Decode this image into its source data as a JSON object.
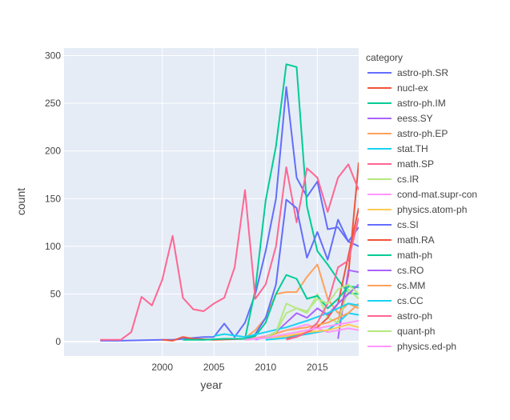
{
  "chart_data": {
    "type": "line",
    "xlabel": "year",
    "ylabel": "count",
    "xlim": [
      1990.5,
      2019
    ],
    "ylim": [
      -15,
      308
    ],
    "x_ticks": [
      2000,
      2005,
      2010,
      2015
    ],
    "y_ticks": [
      0,
      50,
      100,
      150,
      200,
      250,
      300
    ],
    "grid": true,
    "legend_title": "category",
    "legend_position": "right",
    "series": [
      {
        "name": "astro-ph.SR",
        "color": "#636efa",
        "x": [
          1994,
          1995,
          1996,
          2000,
          2001,
          2004,
          2005,
          2006,
          2007,
          2008,
          2009,
          2010,
          2011,
          2012,
          2013,
          2014,
          2015,
          2016,
          2017,
          2018,
          2019
        ],
        "y": [
          1,
          1,
          1,
          2,
          2,
          5,
          5,
          19,
          5,
          20,
          50,
          95,
          150,
          267,
          172,
          152,
          168,
          118,
          120,
          105,
          100
        ]
      },
      {
        "name": "nucl-ex",
        "color": "#EF553B",
        "x": [
          2000,
          2001,
          2002,
          2003,
          2005,
          2008,
          2010,
          2012,
          2014,
          2016,
          2017,
          2018,
          2019
        ],
        "y": [
          2,
          1,
          5,
          3,
          2,
          3,
          4,
          6,
          8,
          12,
          20,
          70,
          188
        ]
      },
      {
        "name": "astro-ph.IM",
        "color": "#00cc96",
        "x": [
          2002,
          2004,
          2006,
          2008,
          2009,
          2010,
          2011,
          2012,
          2013,
          2014,
          2015,
          2016,
          2017,
          2018,
          2019
        ],
        "y": [
          2,
          2,
          3,
          3,
          55,
          148,
          205,
          291,
          288,
          142,
          95,
          81,
          65,
          51,
          50
        ]
      },
      {
        "name": "eess.SY",
        "color": "#ab63fa",
        "x": [
          2017,
          2018,
          2019
        ],
        "y": [
          3,
          75,
          73
        ]
      },
      {
        "name": "astro-ph.EP",
        "color": "#FFA15A",
        "x": [
          2008,
          2009,
          2010,
          2011,
          2012,
          2013,
          2014,
          2015,
          2016,
          2017,
          2018,
          2019
        ],
        "y": [
          4,
          12,
          25,
          50,
          52,
          52,
          68,
          81,
          45,
          30,
          40,
          35
        ]
      },
      {
        "name": "stat.TH",
        "color": "#19d3f3",
        "x": [
          2010,
          2012,
          2014,
          2016,
          2017,
          2018,
          2019
        ],
        "y": [
          2,
          4,
          8,
          12,
          20,
          30,
          28
        ]
      },
      {
        "name": "math.SP",
        "color": "#FF6692",
        "x": [
          1994,
          1995,
          1996,
          1997,
          1998,
          1999,
          2000,
          2001,
          2002,
          2003,
          2004,
          2005,
          2006,
          2007,
          2008,
          2009,
          2010,
          2011,
          2012,
          2013,
          2014,
          2015,
          2016,
          2017,
          2018,
          2019
        ],
        "y": [
          2,
          2,
          2,
          10,
          47,
          38,
          65,
          111,
          46,
          34,
          32,
          40,
          46,
          78,
          159,
          45,
          60,
          100,
          183,
          125,
          182,
          172,
          136,
          172,
          186,
          159
        ]
      },
      {
        "name": "cs.IR",
        "color": "#B6E880",
        "x": [
          2010,
          2011,
          2012,
          2013,
          2014,
          2015,
          2016,
          2017,
          2018,
          2019
        ],
        "y": [
          5,
          10,
          40,
          35,
          30,
          50,
          25,
          20,
          55,
          45
        ]
      },
      {
        "name": "cond-mat.supr-con",
        "color": "#FF97FF",
        "x": [
          2008,
          2010,
          2012,
          2014,
          2016,
          2018,
          2019
        ],
        "y": [
          2,
          6,
          12,
          18,
          10,
          14,
          12
        ]
      },
      {
        "name": "physics.atom-ph",
        "color": "#FECB52",
        "x": [
          2008,
          2010,
          2012,
          2014,
          2016,
          2018,
          2019
        ],
        "y": [
          2,
          4,
          6,
          10,
          12,
          18,
          15
        ]
      },
      {
        "name": "cs.SI",
        "color": "#636efa",
        "x": [
          2008,
          2009,
          2010,
          2011,
          2012,
          2013,
          2014,
          2015,
          2016,
          2017,
          2018,
          2019
        ],
        "y": [
          3,
          8,
          25,
          60,
          149,
          140,
          88,
          115,
          86,
          128,
          105,
          120
        ]
      },
      {
        "name": "math.RA",
        "color": "#EF553B",
        "x": [
          2012,
          2013,
          2014,
          2015,
          2016,
          2017,
          2018,
          2019
        ],
        "y": [
          3,
          5,
          10,
          15,
          25,
          40,
          90,
          140
        ]
      },
      {
        "name": "math-ph",
        "color": "#00cc96",
        "x": [
          2008,
          2009,
          2010,
          2011,
          2012,
          2013,
          2014,
          2015,
          2016,
          2017,
          2018,
          2019
        ],
        "y": [
          3,
          6,
          20,
          50,
          70,
          66,
          45,
          48,
          35,
          45,
          58,
          57
        ]
      },
      {
        "name": "cs.RO",
        "color": "#ab63fa",
        "x": [
          2009,
          2010,
          2011,
          2012,
          2013,
          2014,
          2015,
          2016,
          2017,
          2018,
          2019
        ],
        "y": [
          2,
          5,
          10,
          20,
          30,
          25,
          35,
          28,
          40,
          50,
          60
        ]
      },
      {
        "name": "cs.MM",
        "color": "#FFA15A",
        "x": [
          2008,
          2010,
          2012,
          2014,
          2016,
          2017,
          2018,
          2019
        ],
        "y": [
          2,
          5,
          12,
          15,
          20,
          25,
          30,
          40
        ]
      },
      {
        "name": "cs.CC",
        "color": "#19d3f3",
        "x": [
          2005,
          2006,
          2008,
          2010,
          2012,
          2014,
          2016,
          2018,
          2019
        ],
        "y": [
          6,
          8,
          5,
          10,
          15,
          22,
          30,
          40,
          38
        ]
      },
      {
        "name": "astro-ph",
        "color": "#FF6692",
        "x": [
          2012,
          2013,
          2014,
          2015,
          2016,
          2017,
          2018,
          2019
        ],
        "y": [
          2,
          5,
          10,
          20,
          40,
          78,
          85,
          130
        ]
      },
      {
        "name": "quant-ph",
        "color": "#B6E880",
        "x": [
          2010,
          2011,
          2012,
          2013,
          2014,
          2015,
          2016,
          2017,
          2018,
          2019
        ],
        "y": [
          5,
          10,
          30,
          35,
          32,
          45,
          40,
          55,
          60,
          50
        ]
      },
      {
        "name": "physics.ed-ph",
        "color": "#FF97FF",
        "x": [
          2008,
          2010,
          2012,
          2014,
          2016,
          2018,
          2019
        ],
        "y": [
          2,
          4,
          8,
          12,
          16,
          20,
          22
        ]
      }
    ]
  }
}
